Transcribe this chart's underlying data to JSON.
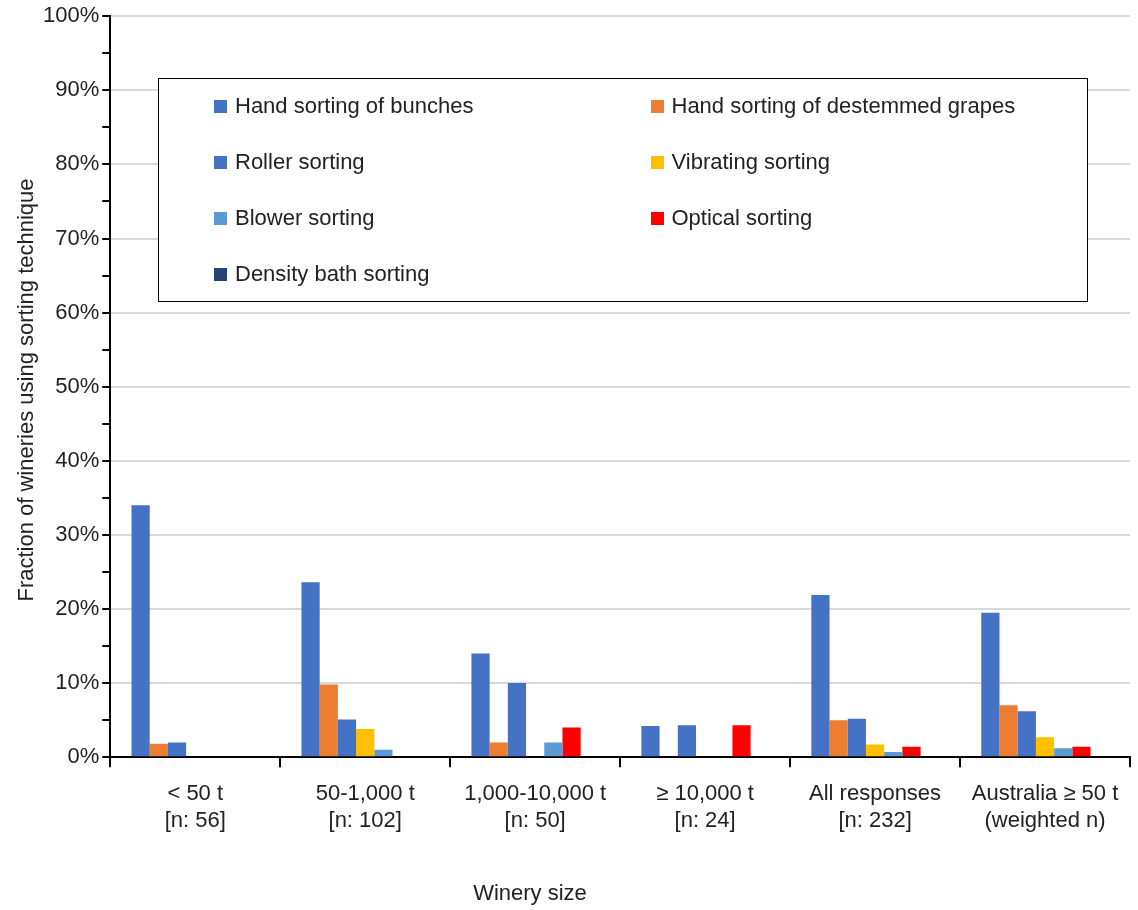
{
  "chart_data": {
    "type": "bar",
    "xlabel": "Winery size",
    "ylabel": "Fraction of wineries using sorting technique",
    "categories": [
      "< 50 t\n[n: 56]",
      "50-1,000 t\n[n: 102]",
      "1,000-10,000 t\n[n: 50]",
      "≥ 10,000 t\n[n: 24]",
      "All responses\n[n: 232]",
      "Australia ≥ 50 t\n(weighted n)"
    ],
    "series": [
      {
        "name": "Hand sorting of bunches",
        "color": "#4472c4",
        "values": [
          34.0,
          23.6,
          14.0,
          4.2,
          21.9,
          19.5
        ]
      },
      {
        "name": "Hand sorting of destemmed grapes",
        "color": "#ed7d31",
        "values": [
          1.8,
          9.8,
          2.0,
          0,
          5.0,
          7.0
        ]
      },
      {
        "name": "Roller sorting",
        "color": "#4472c4",
        "values": [
          2.0,
          5.1,
          10.0,
          4.3,
          5.2,
          6.2
        ]
      },
      {
        "name": "Vibrating sorting",
        "color": "#ffc000",
        "values": [
          0,
          3.8,
          0,
          0,
          1.7,
          2.7
        ]
      },
      {
        "name": "Blower sorting",
        "color": "#5b9bd5",
        "values": [
          0,
          1.0,
          2.0,
          0,
          0.7,
          1.2
        ]
      },
      {
        "name": "Optical sorting",
        "color": "#ff0000",
        "values": [
          0,
          0,
          4.0,
          4.3,
          1.4,
          1.4
        ]
      },
      {
        "name": "Density bath sorting",
        "color": "#264478",
        "values": [
          0,
          0,
          0,
          0,
          0,
          0
        ]
      }
    ],
    "ylim": [
      0,
      100
    ],
    "yticks": [
      {
        "value": 0,
        "label": "0%"
      },
      {
        "value": 5,
        "label": null
      },
      {
        "value": 10,
        "label": "10%"
      },
      {
        "value": 15,
        "label": null
      },
      {
        "value": 20,
        "label": "20%"
      },
      {
        "value": 25,
        "label": null
      },
      {
        "value": 30,
        "label": "30%"
      },
      {
        "value": 35,
        "label": null
      },
      {
        "value": 40,
        "label": "40%"
      },
      {
        "value": 45,
        "label": null
      },
      {
        "value": 50,
        "label": "50%"
      },
      {
        "value": 55,
        "label": null
      },
      {
        "value": 60,
        "label": "60%"
      },
      {
        "value": 65,
        "label": null
      },
      {
        "value": 70,
        "label": "70%"
      },
      {
        "value": 75,
        "label": null
      },
      {
        "value": 80,
        "label": "80%"
      },
      {
        "value": 85,
        "label": null
      },
      {
        "value": 90,
        "label": "90%"
      },
      {
        "value": 95,
        "label": null
      },
      {
        "value": 100,
        "label": "100%"
      }
    ],
    "grid": "y",
    "legend": "top"
  }
}
